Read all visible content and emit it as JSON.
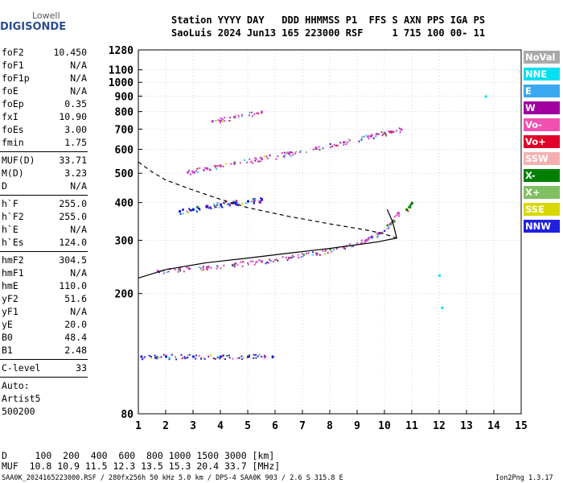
{
  "logo": {
    "top": "Lowell",
    "bottom": "DIGISONDE"
  },
  "header": {
    "line1": "Station YYYY DAY   DDD HHMMSS P1  FFS S AXN PPS IGA PS",
    "line2": "SaoLuis 2024 Jun13 165 223000 RSF     1 715 100 00- 11"
  },
  "params_group1": [
    {
      "name": "foF2",
      "value": "10.450"
    },
    {
      "name": "foF1",
      "value": "N/A"
    },
    {
      "name": "foF1p",
      "value": "N/A"
    },
    {
      "name": "foE",
      "value": "N/A"
    },
    {
      "name": "foEp",
      "value": "0.35"
    },
    {
      "name": "fxI",
      "value": "10.90"
    },
    {
      "name": "foEs",
      "value": "3.00"
    },
    {
      "name": "fmin",
      "value": "1.75"
    }
  ],
  "params_group2": [
    {
      "name": "MUF(D)",
      "value": "33.71"
    },
    {
      "name": "M(D)",
      "value": "3.23"
    },
    {
      "name": "D",
      "value": "N/A"
    }
  ],
  "params_group3": [
    {
      "name": "h`F",
      "value": "255.0"
    },
    {
      "name": "h`F2",
      "value": "255.0"
    },
    {
      "name": "h`E",
      "value": "N/A"
    },
    {
      "name": "h`Es",
      "value": "124.0"
    }
  ],
  "params_group4": [
    {
      "name": "hmF2",
      "value": "304.5"
    },
    {
      "name": "hmF1",
      "value": "N/A"
    },
    {
      "name": "hmE",
      "value": "110.0"
    },
    {
      "name": "yF2",
      "value": "51.6"
    },
    {
      "name": "yF1",
      "value": "N/A"
    },
    {
      "name": "yE",
      "value": "20.0"
    },
    {
      "name": "B0",
      "value": "48.4"
    },
    {
      "name": "B1",
      "value": "2.48"
    }
  ],
  "c_level": {
    "name": "C-level",
    "value": "33"
  },
  "auto": {
    "line1": "Auto:",
    "line2": "Artist5",
    "line3": "500200"
  },
  "legend": [
    {
      "label": "NoVal",
      "color": "#a9a9a9"
    },
    {
      "label": "NNE",
      "color": "#00e0f0"
    },
    {
      "label": "E",
      "color": "#3aa8f0"
    },
    {
      "label": "W",
      "color": "#a000a0"
    },
    {
      "label": "Vo-",
      "color": "#f050b0"
    },
    {
      "label": "Vo+",
      "color": "#e0002a"
    },
    {
      "label": "SSW",
      "color": "#f4b0b0"
    },
    {
      "label": "X-",
      "color": "#008000"
    },
    {
      "label": "X+",
      "color": "#80c060"
    },
    {
      "label": "SSE",
      "color": "#d8d800"
    },
    {
      "label": "NNW",
      "color": "#2020e0"
    }
  ],
  "muf_table": {
    "d_row": "D     100  200  400  600  800 1000 1500 3000 [km]",
    "muf_row": "MUF  10.8 10.9 11.5 12.3 13.5 15.3 20.4 33.7 [MHz]"
  },
  "footer": {
    "left": "SAA0K_2024165223000.RSF / 280fx256h 50 kHz 5.0 km / DPS-4 SAA0K 903 / 2.6 S 315.8 E",
    "right": "Ion2Png 1.3.17"
  },
  "chart_data": {
    "type": "scatter",
    "x_ticks": [
      1,
      2,
      3,
      4,
      5,
      6,
      7,
      8,
      9,
      10,
      11,
      12,
      13,
      14,
      15
    ],
    "y_ticks": [
      80,
      200,
      300,
      400,
      500,
      600,
      700,
      800,
      900,
      1000,
      1100,
      1280
    ],
    "xlim": [
      1,
      15
    ],
    "ylim": [
      80,
      1280
    ],
    "y_scale": "logarithmic",
    "grid": true,
    "traces": [
      {
        "name": "F2 O-trace",
        "color": "#c040c0",
        "x": [
          1.7,
          2.5,
          3.5,
          4.5,
          5.5,
          6.5,
          7.5,
          8.5,
          9.3,
          9.8,
          10.2,
          10.5
        ],
        "y": [
          238,
          241,
          245,
          250,
          256,
          263,
          272,
          285,
          300,
          318,
          340,
          370
        ]
      },
      {
        "name": "F2 second hop",
        "color": "#c040c0",
        "x": [
          2.8,
          3.5,
          4.5,
          5.5,
          6.5,
          7.5,
          8.5,
          9.5,
          10.0,
          10.6
        ],
        "y": [
          505,
          520,
          540,
          560,
          582,
          605,
          635,
          665,
          680,
          700
        ]
      },
      {
        "name": "F2 third hop",
        "color": "#c040c0",
        "x": [
          3.7,
          4.5,
          5.5
        ],
        "y": [
          745,
          770,
          800
        ]
      },
      {
        "name": "Es layer",
        "color": "#2020e0",
        "x": [
          1.1,
          2.0,
          3.0,
          4.0,
          5.0,
          5.9
        ],
        "y": [
          124,
          124,
          124,
          124,
          124,
          124
        ]
      },
      {
        "name": "Es second hop",
        "color": "#2020e0",
        "x": [
          2.5,
          3.0,
          3.5,
          4.0,
          4.5,
          5.0,
          5.5
        ],
        "y": [
          375,
          380,
          388,
          395,
          400,
          405,
          410
        ]
      },
      {
        "name": "X-trace",
        "color": "#008000",
        "x": [
          10.8,
          11.0
        ],
        "y": [
          380,
          400
        ]
      },
      {
        "name": "Vertical",
        "color": "#00e0f0",
        "x": [
          12.0,
          12.1,
          13.7
        ],
        "y": [
          230,
          180,
          900
        ]
      }
    ],
    "profile_solid": {
      "x": [
        1.0,
        2.0,
        3.5,
        5.0,
        6.5,
        8.0,
        9.0,
        9.8,
        10.2,
        10.45,
        10.3,
        10.1
      ],
      "y": [
        225,
        240,
        253,
        262,
        272,
        282,
        290,
        297,
        302,
        305,
        345,
        380
      ]
    },
    "profile_dashed": {
      "x": [
        1.0,
        1.5,
        2.0,
        3.0,
        4.0,
        5.0,
        6.5,
        8.0,
        9.3,
        10.0,
        10.45
      ],
      "y": [
        545,
        505,
        475,
        440,
        410,
        385,
        360,
        340,
        325,
        315,
        305
      ]
    }
  }
}
